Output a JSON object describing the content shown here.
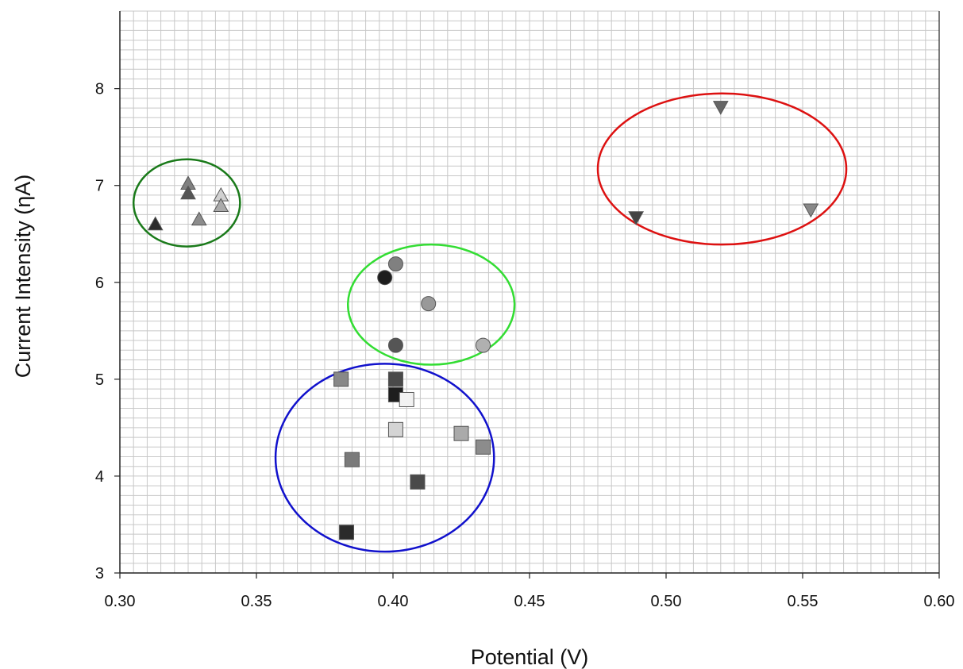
{
  "chart_data": {
    "type": "scatter",
    "title": "",
    "xlabel": "Potential (V)",
    "ylabel": "Current Intensity (ƞA)",
    "xlim": [
      0.3,
      0.6
    ],
    "ylim": [
      3,
      8.8
    ],
    "x_ticks": [
      "0.30",
      "0.35",
      "0.40",
      "0.45",
      "0.50",
      "0.55",
      "0.60"
    ],
    "y_ticks": [
      "3",
      "4",
      "5",
      "6",
      "7",
      "8"
    ],
    "grid": true,
    "legend": "none",
    "series": [
      {
        "marker": "triangle-up",
        "points": [
          {
            "x": 0.313,
            "y": 6.6,
            "color": "#2b2b2b"
          },
          {
            "x": 0.325,
            "y": 7.02,
            "color": "#808080"
          },
          {
            "x": 0.325,
            "y": 6.92,
            "color": "#555555"
          },
          {
            "x": 0.329,
            "y": 6.65,
            "color": "#8c8c8c"
          },
          {
            "x": 0.337,
            "y": 6.9,
            "color": "#d0d0d0"
          },
          {
            "x": 0.337,
            "y": 6.79,
            "color": "#aaaaaa"
          }
        ]
      },
      {
        "marker": "circle",
        "points": [
          {
            "x": 0.397,
            "y": 6.05,
            "color": "#1e1e1e"
          },
          {
            "x": 0.401,
            "y": 6.19,
            "color": "#808080"
          },
          {
            "x": 0.413,
            "y": 5.78,
            "color": "#999999"
          },
          {
            "x": 0.401,
            "y": 5.35,
            "color": "#555555"
          },
          {
            "x": 0.433,
            "y": 5.35,
            "color": "#b0b0b0"
          }
        ]
      },
      {
        "marker": "square",
        "points": [
          {
            "x": 0.381,
            "y": 5.0,
            "color": "#888888"
          },
          {
            "x": 0.401,
            "y": 5.0,
            "color": "#4a4a4a"
          },
          {
            "x": 0.401,
            "y": 4.84,
            "color": "#1e1e1e"
          },
          {
            "x": 0.405,
            "y": 4.79,
            "color": "#f2f2f2"
          },
          {
            "x": 0.401,
            "y": 4.48,
            "color": "#d4d4d4"
          },
          {
            "x": 0.425,
            "y": 4.44,
            "color": "#aaaaaa"
          },
          {
            "x": 0.433,
            "y": 4.3,
            "color": "#8c8c8c"
          },
          {
            "x": 0.385,
            "y": 4.17,
            "color": "#7a7a7a"
          },
          {
            "x": 0.409,
            "y": 3.94,
            "color": "#4a4a4a"
          },
          {
            "x": 0.383,
            "y": 3.42,
            "color": "#2b2b2b"
          }
        ]
      },
      {
        "marker": "triangle-down",
        "points": [
          {
            "x": 0.489,
            "y": 6.67,
            "color": "#444444"
          },
          {
            "x": 0.52,
            "y": 7.81,
            "color": "#666666"
          },
          {
            "x": 0.553,
            "y": 6.75,
            "color": "#888888"
          }
        ]
      }
    ],
    "cluster_ellipses": [
      {
        "color": "#1a7a1a",
        "cx": 0.3245,
        "cy": 6.82,
        "rx": 0.0195,
        "ry": 0.45
      },
      {
        "color": "#33dd33",
        "cx": 0.414,
        "cy": 5.77,
        "rx": 0.0305,
        "ry": 0.62
      },
      {
        "color": "#1111cc",
        "cx": 0.397,
        "cy": 4.19,
        "rx": 0.04,
        "ry": 0.97
      },
      {
        "color": "#dd1111",
        "cx": 0.5205,
        "cy": 7.17,
        "rx": 0.0455,
        "ry": 0.78
      }
    ]
  }
}
